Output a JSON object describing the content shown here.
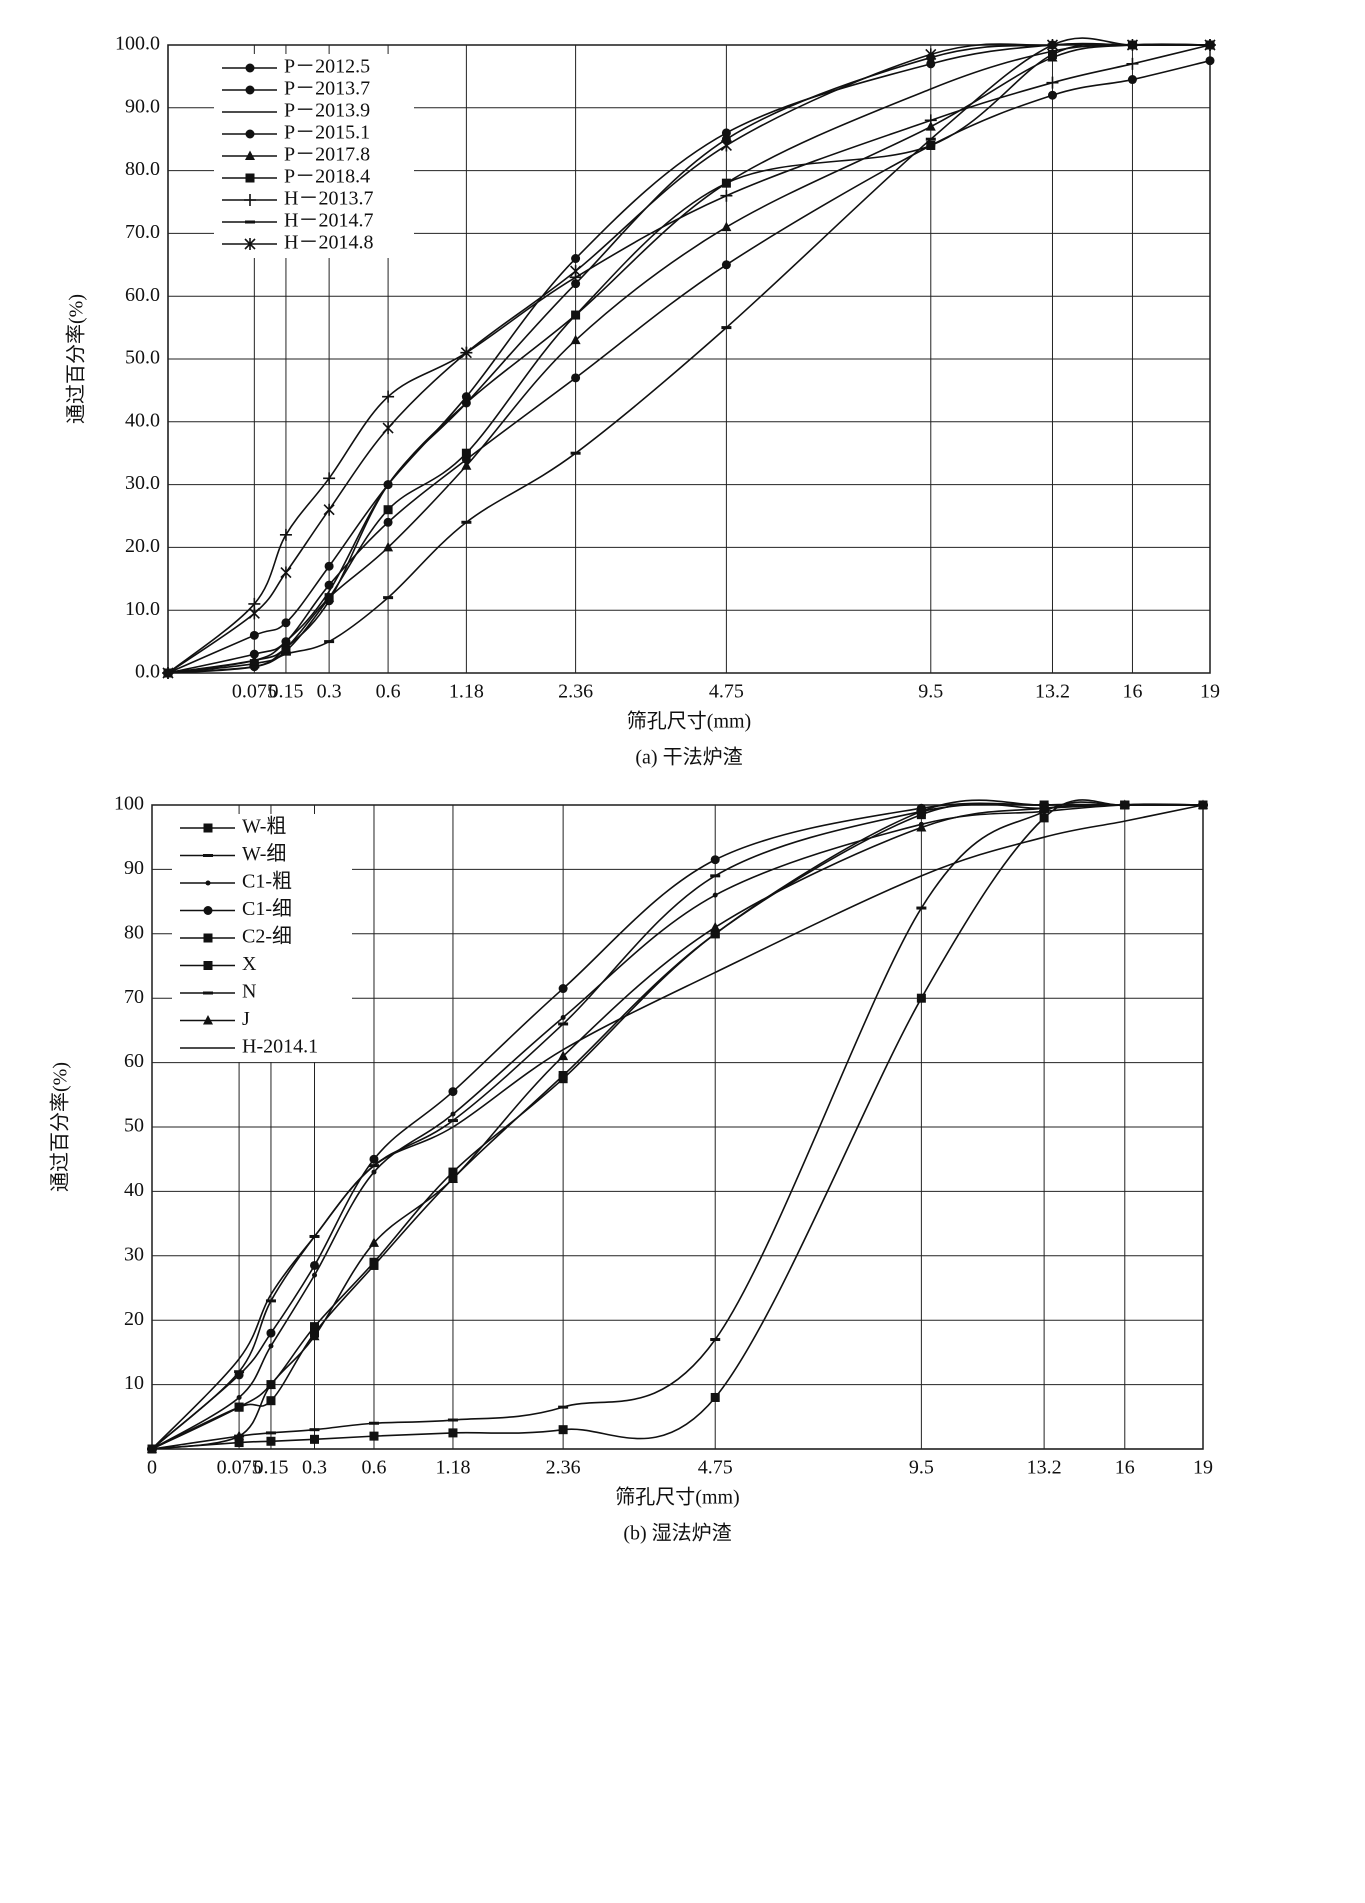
{
  "chart_data": [
    {
      "type": "line",
      "title": "(a) 干法炉渣",
      "xlabel": "筛孔尺寸(mm)",
      "ylabel": "通过百分率(%)",
      "xscale": "power",
      "xexponent": 0.45,
      "color": "#111111",
      "grid": true,
      "legend": "upper left",
      "x": [
        0,
        0.075,
        0.15,
        0.3,
        0.6,
        1.18,
        2.36,
        4.75,
        9.5,
        13.2,
        16,
        19
      ],
      "xlim": [
        0,
        19
      ],
      "xticks": [
        0.075,
        0.15,
        0.3,
        0.6,
        1.18,
        2.36,
        4.75,
        9.5,
        13.2,
        16,
        19
      ],
      "ylim": [
        0,
        100
      ],
      "yticks": [
        {
          "value": 0,
          "label": "0.0"
        },
        {
          "value": 10,
          "label": "10.0"
        },
        {
          "value": 20,
          "label": "20.0"
        },
        {
          "value": 30,
          "label": "30.0"
        },
        {
          "value": 40,
          "label": "40.0"
        },
        {
          "value": 50,
          "label": "50.0"
        },
        {
          "value": 60,
          "label": "60.0"
        },
        {
          "value": 70,
          "label": "70.0"
        },
        {
          "value": 80,
          "label": "80.0"
        },
        {
          "value": 90,
          "label": "90.0"
        },
        {
          "value": 100,
          "label": "100.0"
        }
      ],
      "series": [
        {
          "name": "P－2012.5",
          "marker": "circle",
          "values": [
            0,
            6,
            8,
            17,
            30,
            44,
            66,
            86,
            97,
            100,
            100,
            100
          ]
        },
        {
          "name": "P－2013.7",
          "marker": "circle",
          "values": [
            0,
            3,
            5,
            14,
            24,
            34,
            47,
            65,
            84,
            92,
            94.5,
            97.5
          ]
        },
        {
          "name": "P－2013.9",
          "marker": "none",
          "values": [
            0,
            2,
            5,
            13,
            30,
            43,
            57,
            78,
            93,
            99,
            100,
            100
          ]
        },
        {
          "name": "P－2015.1",
          "marker": "circle",
          "values": [
            0,
            1,
            4,
            11.5,
            30,
            43,
            62,
            85,
            98,
            100,
            100,
            100
          ]
        },
        {
          "name": "P－2017.8",
          "marker": "triangle",
          "values": [
            0,
            2,
            4,
            12,
            20,
            33,
            53,
            71,
            87,
            98,
            100,
            100
          ]
        },
        {
          "name": "P－2018.4",
          "marker": "square",
          "values": [
            0,
            1.5,
            3.5,
            12,
            26,
            35,
            57,
            78,
            84,
            98.5,
            100,
            100
          ]
        },
        {
          "name": "H－2013.7",
          "marker": "plus",
          "values": [
            0,
            11,
            22,
            31,
            44,
            51,
            63,
            76,
            88,
            94,
            97,
            100
          ]
        },
        {
          "name": "H－2014.7",
          "marker": "dash",
          "values": [
            0,
            1,
            3,
            5,
            12,
            24,
            35,
            55,
            85,
            100,
            100,
            100
          ]
        },
        {
          "name": "H－2014.8",
          "marker": "star",
          "values": [
            0,
            9.5,
            16,
            26,
            39,
            51,
            64,
            84,
            98.5,
            100,
            100,
            100
          ]
        }
      ]
    },
    {
      "type": "line",
      "title": "(b) 湿法炉渣",
      "xlabel": "筛孔尺寸(mm)",
      "ylabel": "通过百分率(%)",
      "xscale": "power",
      "xexponent": 0.45,
      "color": "#111111",
      "grid": true,
      "legend": "upper left",
      "x": [
        0,
        0.075,
        0.15,
        0.3,
        0.6,
        1.18,
        2.36,
        4.75,
        9.5,
        13.2,
        16,
        19
      ],
      "xlim": [
        0,
        19
      ],
      "xticks": [
        0,
        0.075,
        0.15,
        0.3,
        0.6,
        1.18,
        2.36,
        4.75,
        9.5,
        13.2,
        16,
        19
      ],
      "ylim": [
        0,
        100
      ],
      "yticks": [
        10,
        20,
        30,
        40,
        50,
        60,
        70,
        80,
        90,
        100
      ],
      "series": [
        {
          "name": "W-粗",
          "marker": "square",
          "values": [
            0,
            1,
            1.2,
            1.5,
            2,
            2.5,
            3,
            8,
            70,
            98,
            100,
            100
          ]
        },
        {
          "name": "W-细",
          "marker": "dash",
          "values": [
            0,
            2,
            2.5,
            3,
            4,
            4.5,
            6.5,
            17,
            84,
            99,
            100,
            100
          ]
        },
        {
          "name": "C1-粗",
          "marker": "dot",
          "values": [
            0,
            8,
            16,
            27,
            43,
            52,
            67,
            86,
            97,
            99,
            100,
            100
          ]
        },
        {
          "name": "C1-细",
          "marker": "circle",
          "values": [
            0,
            11.5,
            18,
            28.5,
            45,
            55.5,
            71.5,
            91.5,
            99.5,
            100,
            100,
            100
          ]
        },
        {
          "name": "C2-细",
          "marker": "square",
          "values": [
            0,
            6.5,
            10,
            19,
            29,
            43,
            57.5,
            80,
            99,
            100,
            100,
            100
          ]
        },
        {
          "name": "X",
          "marker": "square",
          "values": [
            0,
            6.5,
            7.5,
            18,
            28.5,
            42,
            58,
            80,
            98.5,
            99.5,
            100,
            100
          ]
        },
        {
          "name": "N",
          "marker": "dash",
          "values": [
            0,
            12,
            23,
            33,
            44,
            51,
            66,
            89,
            99,
            100,
            100,
            100
          ]
        },
        {
          "name": "J",
          "marker": "triangle",
          "values": [
            0,
            2,
            10,
            17.5,
            32,
            42,
            61,
            81,
            96.5,
            99.5,
            100,
            100
          ]
        },
        {
          "name": "H-2014.1",
          "marker": "none",
          "values": [
            0,
            14,
            24,
            33,
            44,
            50,
            62,
            74,
            89,
            95,
            97.5,
            100
          ]
        }
      ]
    }
  ]
}
